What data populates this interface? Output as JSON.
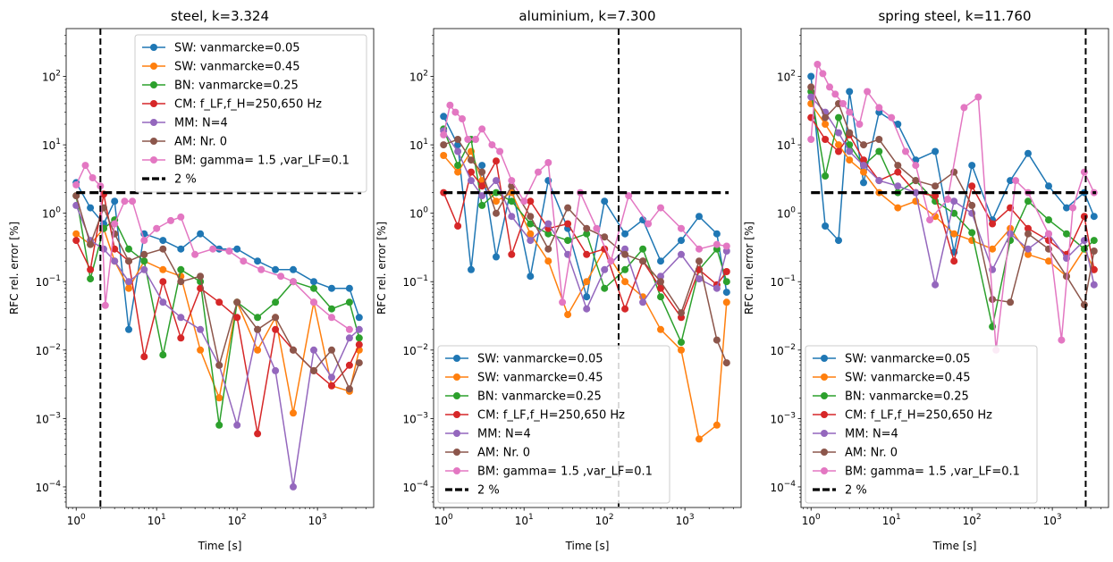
{
  "chart_data": [
    {
      "type": "line",
      "title": "steel, k=3.324",
      "xlabel": "Time [s]",
      "ylabel": "RFC rel. error [%]",
      "xscale": "log",
      "yscale": "log",
      "xlim": [
        0.75,
        5000
      ],
      "ylim": [
        5e-05,
        500
      ],
      "xticks": [
        1,
        10,
        100,
        1000
      ],
      "xtick_labels": [
        "10^0",
        "10^1",
        "10^2",
        "10^3"
      ],
      "yticks": [
        0.0001,
        0.001,
        0.01,
        0.1,
        1,
        10,
        100
      ],
      "ytick_labels": [
        "10^-4",
        "10^-3",
        "10^-2",
        "10^-1",
        "10^0",
        "10^1",
        "10^2"
      ],
      "vline_x": 2,
      "legend_loc": "upper right",
      "reference_line": {
        "name": "2 %",
        "y": 2,
        "x": [
          1,
          3500
        ]
      },
      "series": [
        {
          "name": "SW: vanmarcke=0.05",
          "x": [
            1,
            1.5,
            2.2,
            3,
            4.5,
            7,
            12,
            20,
            35,
            60,
            100,
            180,
            300,
            500,
            900,
            1500,
            2500,
            3300
          ],
          "values": [
            2.8,
            1.2,
            0.7,
            1.5,
            0.02,
            0.5,
            0.4,
            0.3,
            0.5,
            0.3,
            0.3,
            0.2,
            0.15,
            0.15,
            0.1,
            0.08,
            0.08,
            0.03
          ]
        },
        {
          "name": "SW: vanmarcke=0.45",
          "x": [
            1,
            1.5,
            2.2,
            3,
            4.5,
            7,
            12,
            20,
            35,
            60,
            100,
            180,
            300,
            500,
            900,
            1500,
            2500,
            3300
          ],
          "values": [
            0.5,
            0.35,
            0.6,
            0.2,
            0.08,
            0.2,
            0.15,
            0.12,
            0.01,
            0.002,
            0.05,
            0.01,
            0.03,
            0.0012,
            0.05,
            0.003,
            0.0025,
            0.01
          ]
        },
        {
          "name": "BN: vanmarcke=0.25",
          "x": [
            1,
            1.5,
            2.2,
            3,
            4.5,
            7,
            12,
            20,
            35,
            60,
            100,
            180,
            300,
            500,
            900,
            1500,
            2500,
            3300
          ],
          "values": [
            1.8,
            0.11,
            0.6,
            0.8,
            0.3,
            0.2,
            0.0085,
            0.15,
            0.1,
            0.0008,
            0.05,
            0.03,
            0.05,
            0.1,
            0.08,
            0.04,
            0.05,
            0.015
          ]
        },
        {
          "name": "CM: f_LF,f_H=250,650 Hz",
          "x": [
            1,
            1.5,
            2.2,
            3,
            4.5,
            7,
            12,
            20,
            35,
            60,
            100,
            180,
            300,
            500,
            900,
            1500,
            2500,
            3300
          ],
          "values": [
            0.4,
            0.15,
            1.9,
            0.3,
            0.2,
            0.008,
            0.1,
            0.015,
            0.08,
            0.05,
            0.03,
            0.0006,
            0.02,
            0.01,
            0.005,
            0.003,
            0.006,
            0.012
          ]
        },
        {
          "name": "MM: N=4",
          "x": [
            1,
            1.5,
            2.2,
            3,
            4.5,
            7,
            12,
            20,
            35,
            60,
            100,
            180,
            300,
            500,
            900,
            1500,
            2500,
            3300
          ],
          "values": [
            1.3,
            0.4,
            0.3,
            0.2,
            0.1,
            0.15,
            0.05,
            0.03,
            0.02,
            0.006,
            0.0008,
            0.02,
            0.005,
            0.0001,
            0.01,
            0.004,
            0.015,
            0.02
          ]
        },
        {
          "name": "AM: Nr. 0",
          "x": [
            1,
            1.5,
            2.2,
            3,
            4.5,
            7,
            12,
            20,
            35,
            60,
            100,
            180,
            300,
            500,
            900,
            1500,
            2500,
            3300
          ],
          "values": [
            1.8,
            0.35,
            1.2,
            0.5,
            0.2,
            0.25,
            0.3,
            0.1,
            0.12,
            0.006,
            0.05,
            0.02,
            0.03,
            0.01,
            0.005,
            0.01,
            0.0027,
            0.0065
          ]
        },
        {
          "name": "BM: gamma= 1.5 ,var_LF=0.1",
          "x": [
            1,
            1.3,
            1.6,
            2,
            2.3,
            3,
            4,
            5,
            7,
            10,
            15,
            20,
            30,
            50,
            80,
            120,
            200,
            350,
            500,
            900,
            1500,
            2500
          ],
          "values": [
            2.6,
            5,
            3.3,
            2.5,
            0.045,
            0.7,
            1.5,
            1.5,
            0.4,
            0.6,
            0.78,
            0.88,
            0.25,
            0.3,
            0.28,
            0.2,
            0.15,
            0.12,
            0.1,
            0.05,
            0.03,
            0.02
          ]
        }
      ]
    },
    {
      "type": "line",
      "title": "aluminium, k=7.300",
      "xlabel": "Time [s]",
      "ylabel": "RFC rel. error [%]",
      "xscale": "log",
      "yscale": "log",
      "xlim": [
        0.75,
        5000
      ],
      "ylim": [
        5e-05,
        500
      ],
      "xticks": [
        1,
        10,
        100,
        1000
      ],
      "xtick_labels": [
        "10^0",
        "10^1",
        "10^2",
        "10^3"
      ],
      "yticks": [
        0.0001,
        0.001,
        0.01,
        0.1,
        1,
        10,
        100
      ],
      "ytick_labels": [
        "10^-4",
        "10^-3",
        "10^-2",
        "10^-1",
        "10^0",
        "10^1",
        "10^2"
      ],
      "vline_x": 150,
      "legend_loc": "lower left",
      "reference_line": {
        "name": "2 %",
        "y": 2,
        "x": [
          1,
          3500
        ]
      },
      "series": [
        {
          "name": "SW: vanmarcke=0.05",
          "x": [
            1,
            1.5,
            2.2,
            3,
            4.5,
            7,
            12,
            20,
            35,
            60,
            100,
            180,
            300,
            500,
            900,
            1500,
            2500,
            3300
          ],
          "values": [
            26,
            10,
            0.15,
            5,
            0.23,
            2.5,
            0.12,
            3,
            0.6,
            0.06,
            1.5,
            0.5,
            0.8,
            0.2,
            0.4,
            0.9,
            0.5,
            0.07
          ]
        },
        {
          "name": "SW: vanmarcke=0.45",
          "x": [
            1,
            1.5,
            2.2,
            3,
            4.5,
            7,
            12,
            20,
            35,
            60,
            100,
            180,
            300,
            500,
            900,
            1500,
            2500,
            3300
          ],
          "values": [
            7,
            4,
            8,
            3,
            1.5,
            2,
            0.5,
            0.2,
            0.033,
            0.1,
            0.3,
            0.1,
            0.06,
            0.02,
            0.01,
            0.0005,
            0.0008,
            0.05
          ]
        },
        {
          "name": "BN: vanmarcke=0.25",
          "x": [
            1,
            1.5,
            2.2,
            3,
            4.5,
            7,
            12,
            20,
            35,
            60,
            100,
            180,
            300,
            500,
            900,
            1500,
            2500,
            3300
          ],
          "values": [
            17,
            5,
            12,
            1.3,
            2,
            1.5,
            0.7,
            0.5,
            0.4,
            0.5,
            0.08,
            0.15,
            0.3,
            0.06,
            0.013,
            0.15,
            0.3,
            0.1
          ]
        },
        {
          "name": "CM: f_LF,f_H=250,650 Hz",
          "x": [
            1,
            1.5,
            2.2,
            3,
            4.5,
            7,
            12,
            20,
            35,
            60,
            100,
            180,
            300,
            500,
            900,
            1500,
            2500,
            3300
          ],
          "values": [
            2,
            0.65,
            4,
            2.5,
            5.8,
            0.25,
            1.5,
            0.6,
            0.7,
            0.25,
            0.3,
            0.04,
            0.2,
            0.08,
            0.03,
            0.15,
            0.09,
            0.14
          ]
        },
        {
          "name": "MM: N=4",
          "x": [
            1,
            1.5,
            2.2,
            3,
            4.5,
            7,
            12,
            20,
            35,
            60,
            100,
            180,
            300,
            500,
            900,
            1500,
            2500,
            3300
          ],
          "values": [
            16,
            8,
            3,
            1.8,
            3,
            0.9,
            0.4,
            0.7,
            0.25,
            0.04,
            0.15,
            0.3,
            0.05,
            0.12,
            0.25,
            0.11,
            0.08,
            0.28
          ]
        },
        {
          "name": "AM: Nr. 0",
          "x": [
            1,
            1.5,
            2.2,
            3,
            4.5,
            7,
            12,
            20,
            35,
            60,
            100,
            180,
            300,
            500,
            900,
            1500,
            2500,
            3300
          ],
          "values": [
            10,
            12,
            6,
            4,
            1,
            2.5,
            0.9,
            0.3,
            1.2,
            0.6,
            0.45,
            0.25,
            0.2,
            0.1,
            0.035,
            0.2,
            0.014,
            0.0065
          ]
        },
        {
          "name": "BM: gamma= 1.5 ,var_LF=0.1",
          "x": [
            1,
            1.2,
            1.4,
            1.7,
            2,
            2.5,
            3,
            4,
            5,
            7,
            10,
            15,
            20,
            30,
            50,
            80,
            120,
            200,
            350,
            500,
            900,
            1500,
            2500,
            3300
          ],
          "values": [
            14,
            38,
            30,
            24,
            12,
            12,
            17,
            10,
            8,
            3,
            1.5,
            4,
            5.5,
            0.05,
            2,
            0.6,
            0.2,
            1.8,
            0.7,
            1.2,
            0.6,
            0.3,
            0.35,
            0.33
          ]
        }
      ]
    },
    {
      "type": "line",
      "title": "spring steel, k=11.760",
      "xlabel": "Time [s]",
      "ylabel": "RFC rel. error [%]",
      "xscale": "log",
      "yscale": "log",
      "xlim": [
        0.75,
        5000
      ],
      "ylim": [
        5e-05,
        500
      ],
      "xticks": [
        1,
        10,
        100,
        1000
      ],
      "xtick_labels": [
        "10^0",
        "10^1",
        "10^2",
        "10^3"
      ],
      "yticks": [
        0.0001,
        0.001,
        0.01,
        0.1,
        1,
        10,
        100
      ],
      "ytick_labels": [
        "10^-4",
        "10^-3",
        "10^-2",
        "10^-1",
        "10^0",
        "10^1",
        "10^2"
      ],
      "vline_x": 2600,
      "legend_loc": "lower left",
      "reference_line": {
        "name": "2 %",
        "y": 2,
        "x": [
          1,
          3500
        ]
      },
      "series": [
        {
          "name": "SW: vanmarcke=0.05",
          "x": [
            1,
            1.5,
            2.2,
            3,
            4.5,
            7,
            12,
            20,
            35,
            60,
            100,
            180,
            300,
            500,
            900,
            1500,
            2500,
            3300
          ],
          "values": [
            100,
            0.65,
            0.4,
            60,
            2.8,
            30,
            20,
            6,
            8,
            0.27,
            5,
            0.8,
            3,
            7.5,
            2.5,
            1.2,
            2,
            0.9
          ]
        },
        {
          "name": "SW: vanmarcke=0.45",
          "x": [
            1,
            1.5,
            2.2,
            3,
            4.5,
            7,
            12,
            20,
            35,
            60,
            100,
            180,
            300,
            500,
            900,
            1500,
            2500,
            3300
          ],
          "values": [
            40,
            20,
            10,
            6,
            4,
            2,
            1.2,
            1.5,
            0.9,
            0.5,
            0.4,
            0.3,
            0.6,
            0.25,
            0.2,
            0.12,
            0.3,
            0.15
          ]
        },
        {
          "name": "BN: vanmarcke=0.25",
          "x": [
            1,
            1.5,
            2.2,
            3,
            4.5,
            7,
            12,
            20,
            35,
            60,
            100,
            180,
            300,
            500,
            900,
            1500,
            2500,
            3300
          ],
          "values": [
            60,
            3.5,
            25,
            10,
            5,
            8,
            2,
            3,
            1.5,
            1,
            0.52,
            0.022,
            0.4,
            1.5,
            0.8,
            0.5,
            0.3,
            0.4
          ]
        },
        {
          "name": "CM: f_LF,f_H=250,650 Hz",
          "x": [
            1,
            1.5,
            2.2,
            3,
            4.5,
            7,
            12,
            20,
            35,
            60,
            100,
            180,
            300,
            500,
            900,
            1500,
            2500,
            3300
          ],
          "values": [
            25,
            12,
            8,
            14,
            6,
            3,
            4,
            2,
            1.8,
            0.2,
            2.5,
            0.7,
            1.2,
            0.6,
            0.4,
            0.25,
            0.9,
            0.15
          ]
        },
        {
          "name": "MM: N=4",
          "x": [
            1,
            1.5,
            2.2,
            3,
            4.5,
            7,
            12,
            20,
            35,
            60,
            100,
            180,
            300,
            500,
            900,
            1500,
            2500,
            3300
          ],
          "values": [
            50,
            30,
            15,
            8,
            5,
            3,
            2.5,
            2,
            0.09,
            1.5,
            1,
            0.15,
            0.5,
            0.3,
            0.5,
            0.22,
            0.4,
            0.09
          ]
        },
        {
          "name": "AM: Nr. 0",
          "x": [
            1,
            1.5,
            2.2,
            3,
            4.5,
            7,
            12,
            20,
            35,
            60,
            100,
            180,
            300,
            500,
            900,
            1500,
            2500,
            3300
          ],
          "values": [
            70,
            25,
            40,
            15,
            10,
            12,
            5,
            3,
            2.5,
            4,
            1.3,
            0.055,
            0.05,
            0.5,
            0.3,
            0.12,
            0.046,
            0.28
          ]
        },
        {
          "name": "BM: gamma= 1.5 ,var_LF=0.1",
          "x": [
            1,
            1.2,
            1.4,
            1.7,
            2,
            2.5,
            3,
            4,
            5,
            7,
            10,
            15,
            20,
            30,
            50,
            80,
            120,
            200,
            350,
            500,
            900,
            1300,
            1800,
            2500,
            3300
          ],
          "values": [
            12,
            150,
            110,
            70,
            55,
            40,
            30,
            20,
            60,
            35,
            25,
            8,
            5,
            0.8,
            1.6,
            35,
            50,
            0.01,
            3,
            2,
            0.5,
            0.014,
            1.2,
            4,
            2
          ]
        }
      ]
    }
  ],
  "legend": {
    "colors": [
      "#1f77b4",
      "#ff7f0e",
      "#2ca02c",
      "#d62728",
      "#9467bd",
      "#8c564b",
      "#e377c2"
    ],
    "reference_color": "#000000"
  }
}
